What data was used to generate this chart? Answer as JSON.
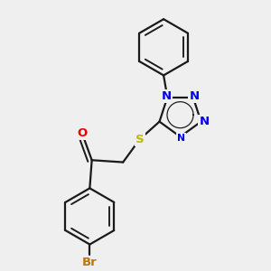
{
  "bg_color": "#efefef",
  "bond_color": "#1a1a1a",
  "bond_width": 1.6,
  "atom_colors": {
    "N": "#0000ee",
    "O": "#ee0000",
    "S": "#bbbb00",
    "Br": "#bb7700",
    "C": "#1a1a1a"
  },
  "font_size": 9.5,
  "figsize": [
    3.0,
    3.0
  ],
  "dpi": 100
}
